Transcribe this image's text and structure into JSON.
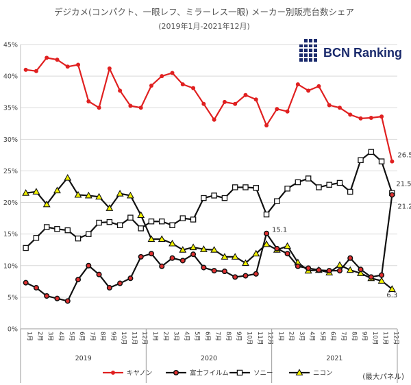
{
  "chart_data": {
    "type": "line",
    "title": "デジカメ(コンパクト、一眼レフ、ミラーレス一眼) メーカー別販売台数シェア",
    "subtitle": "(2019年1月-2021年12月)",
    "brand": "BCN Ranking",
    "note": "(最大パネル)",
    "y_ticks": [
      "0%",
      "5%",
      "10%",
      "15%",
      "20%",
      "25%",
      "30%",
      "35%",
      "40%",
      "45%"
    ],
    "ylim": [
      0,
      45
    ],
    "grid": true,
    "legend_position": "bottom",
    "month_labels": [
      "1月",
      "2月",
      "3月",
      "4月",
      "5月",
      "6月",
      "7月",
      "8月",
      "9月",
      "10月",
      "11月",
      "12月"
    ],
    "years": [
      "2019",
      "2020",
      "2021"
    ],
    "series": [
      {
        "name": "キヤノン",
        "color": "#e02020",
        "marker": "dot",
        "values": [
          41.0,
          40.8,
          42.9,
          42.6,
          41.5,
          41.8,
          36.0,
          35.0,
          41.2,
          37.7,
          35.3,
          35.0,
          38.5,
          40.0,
          40.5,
          38.7,
          38.1,
          35.6,
          33.1,
          35.9,
          35.6,
          37.0,
          36.3,
          32.2,
          34.8,
          34.4,
          38.7,
          37.7,
          38.4,
          35.4,
          35.0,
          33.9,
          33.3,
          33.4,
          33.6,
          26.5
        ]
      },
      {
        "name": "富士フイルム",
        "color": "#111111",
        "marker": "circle",
        "values": [
          7.3,
          6.5,
          5.2,
          4.8,
          4.4,
          7.8,
          10.0,
          8.6,
          6.5,
          7.2,
          8.0,
          11.4,
          11.9,
          9.9,
          11.2,
          10.8,
          11.8,
          9.7,
          9.2,
          9.1,
          8.2,
          8.4,
          8.7,
          15.1,
          12.7,
          11.9,
          9.9,
          9.6,
          9.3,
          9.2,
          9.2,
          11.2,
          9.4,
          8.2,
          8.5,
          21.2
        ]
      },
      {
        "name": "ソニー",
        "color": "#111111",
        "marker": "square",
        "values": [
          12.8,
          14.4,
          16.1,
          15.8,
          15.6,
          14.3,
          15.0,
          16.8,
          16.9,
          16.4,
          17.6,
          15.9,
          17.0,
          17.0,
          16.4,
          17.5,
          17.3,
          20.7,
          21.1,
          20.7,
          22.4,
          22.4,
          22.3,
          18.1,
          20.2,
          22.2,
          23.2,
          23.8,
          22.4,
          22.8,
          23.1,
          21.7,
          26.7,
          28.0,
          26.5,
          21.5
        ]
      },
      {
        "name": "ニコン",
        "color": "#111111",
        "marker": "triangle",
        "values": [
          21.5,
          21.7,
          19.7,
          21.9,
          23.9,
          21.2,
          21.1,
          20.9,
          19.1,
          21.4,
          21.1,
          18.0,
          14.2,
          14.2,
          13.5,
          12.5,
          12.9,
          12.6,
          12.5,
          11.4,
          11.4,
          10.4,
          11.9,
          13.4,
          12.5,
          13.1,
          10.5,
          9.2,
          9.3,
          8.9,
          10.1,
          9.3,
          8.8,
          8.0,
          7.6,
          6.3
        ]
      }
    ],
    "end_labels": [
      {
        "series": "キヤノン",
        "text": "26.5"
      },
      {
        "series": "ソニー",
        "text": "21.5"
      },
      {
        "series": "富士フイルム",
        "text": "21.2"
      },
      {
        "series": "ニコン",
        "text": "6.3"
      }
    ],
    "peak_label": {
      "series": "富士フイルム",
      "text": "15.1"
    }
  }
}
